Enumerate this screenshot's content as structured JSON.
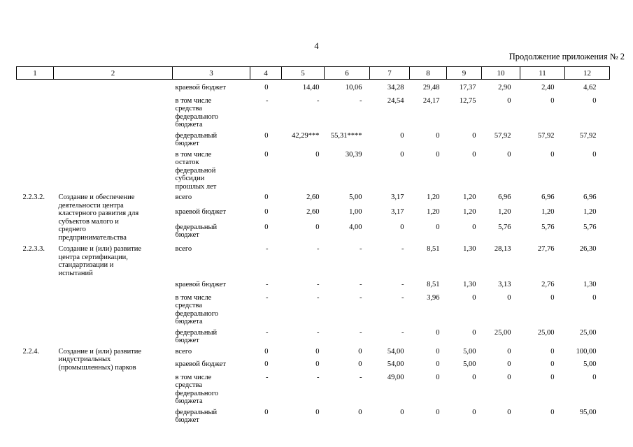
{
  "page": {
    "number": "4",
    "continuation_note": "Продолжение приложения № 2"
  },
  "table": {
    "header_columns": [
      "1",
      "2",
      "3",
      "4",
      "5",
      "6",
      "7",
      "8",
      "9",
      "10",
      "11",
      "12"
    ],
    "groups": [
      {
        "num": "",
        "title": "",
        "rows": [
          {
            "label": "краевой бюджет",
            "values": [
              "0",
              "14,40",
              "10,06",
              "34,28",
              "29,48",
              "17,37",
              "2,90",
              "2,40",
              "4,62"
            ]
          },
          {
            "label": "в том числе\nсредства\nфедерального\nбюджета",
            "values": [
              "-",
              "-",
              "-",
              "24,54",
              "24,17",
              "12,75",
              "0",
              "0",
              "0"
            ]
          },
          {
            "label": "федеральный\nбюджет",
            "values": [
              "0",
              "42,29***",
              "55,31****",
              "0",
              "0",
              "0",
              "57,92",
              "57,92",
              "57,92"
            ]
          },
          {
            "label": "в том числе\nостаток\nфедеральной\nсубсидии\nпрошлых лет",
            "values": [
              "0",
              "0",
              "30,39",
              "0",
              "0",
              "0",
              "0",
              "0",
              "0"
            ]
          }
        ]
      },
      {
        "num": "2.2.3.2.",
        "title": "Создание и обеспечение\nдеятельности центра\nкластерного развития для\nсубъектов малого и\nсреднего\nпредпринимательства",
        "rows": [
          {
            "label": "всего",
            "values": [
              "0",
              "2,60",
              "5,00",
              "3,17",
              "1,20",
              "1,20",
              "6,96",
              "6,96",
              "6,96"
            ]
          },
          {
            "label": "краевой бюджет",
            "values": [
              "0",
              "2,60",
              "1,00",
              "3,17",
              "1,20",
              "1,20",
              "1,20",
              "1,20",
              "1,20"
            ]
          },
          {
            "label": "федеральный\nбюджет",
            "values": [
              "0",
              "0",
              "4,00",
              "0",
              "0",
              "0",
              "5,76",
              "5,76",
              "5,76"
            ]
          }
        ]
      },
      {
        "num": "2.2.3.3.",
        "title": "Создание и (или) развитие\nцентра сертификации,\nстандартизации и\nиспытаний",
        "tall_first_row": true,
        "rows": [
          {
            "label": "всего",
            "values": [
              "-",
              "-",
              "-",
              "-",
              "8,51",
              "1,30",
              "28,13",
              "27,76",
              "26,30"
            ]
          },
          {
            "label": "краевой бюджет",
            "values": [
              "-",
              "-",
              "-",
              "-",
              "8,51",
              "1,30",
              "3,13",
              "2,76",
              "1,30"
            ]
          },
          {
            "label": "в том числе\nсредства\nфедерального\nбюджета",
            "values": [
              "-",
              "-",
              "-",
              "-",
              "3,96",
              "0",
              "0",
              "0",
              "0"
            ]
          },
          {
            "label": "федеральный\nбюджет",
            "values": [
              "-",
              "-",
              "-",
              "-",
              "0",
              "0",
              "25,00",
              "25,00",
              "25,00"
            ]
          }
        ]
      },
      {
        "num": "2.2.4.",
        "title": "Создание и (или) развитие\nиндустриальных\n(промышленных) парков",
        "rows": [
          {
            "label": "всего",
            "values": [
              "0",
              "0",
              "0",
              "54,00",
              "0",
              "5,00",
              "0",
              "0",
              "100,00"
            ]
          },
          {
            "label": "краевой бюджет",
            "values": [
              "0",
              "0",
              "0",
              "54,00",
              "0",
              "5,00",
              "0",
              "0",
              "5,00"
            ]
          },
          {
            "label": "в том числе\nсредства\nфедерального\nбюджета",
            "values": [
              "-",
              "-",
              "-",
              "49,00",
              "0",
              "0",
              "0",
              "0",
              "0"
            ]
          },
          {
            "label": "федеральный\nбюджет",
            "values": [
              "0",
              "0",
              "0",
              "0",
              "0",
              "0",
              "0",
              "0",
              "95,00"
            ]
          }
        ]
      }
    ]
  }
}
